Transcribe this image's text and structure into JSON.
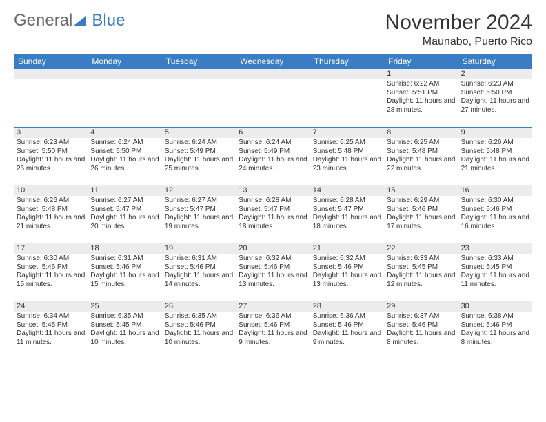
{
  "logo": {
    "general": "General",
    "blue": "Blue"
  },
  "title": "November 2024",
  "location": "Maunabo, Puerto Rico",
  "colors": {
    "header_bg": "#3b7dc4",
    "header_text": "#ffffff",
    "daynum_bg": "#ececec",
    "rule": "#3b7dc4",
    "logo_gray": "#6b6b6b",
    "logo_blue": "#3b7dc4"
  },
  "weekdays": [
    "Sunday",
    "Monday",
    "Tuesday",
    "Wednesday",
    "Thursday",
    "Friday",
    "Saturday"
  ],
  "weeks": [
    [
      null,
      null,
      null,
      null,
      null,
      {
        "n": "1",
        "sr": "6:22 AM",
        "ss": "5:51 PM",
        "dl": "11 hours and 28 minutes."
      },
      {
        "n": "2",
        "sr": "6:23 AM",
        "ss": "5:50 PM",
        "dl": "11 hours and 27 minutes."
      }
    ],
    [
      {
        "n": "3",
        "sr": "6:23 AM",
        "ss": "5:50 PM",
        "dl": "11 hours and 26 minutes."
      },
      {
        "n": "4",
        "sr": "6:24 AM",
        "ss": "5:50 PM",
        "dl": "11 hours and 26 minutes."
      },
      {
        "n": "5",
        "sr": "6:24 AM",
        "ss": "5:49 PM",
        "dl": "11 hours and 25 minutes."
      },
      {
        "n": "6",
        "sr": "6:24 AM",
        "ss": "5:49 PM",
        "dl": "11 hours and 24 minutes."
      },
      {
        "n": "7",
        "sr": "6:25 AM",
        "ss": "5:48 PM",
        "dl": "11 hours and 23 minutes."
      },
      {
        "n": "8",
        "sr": "6:25 AM",
        "ss": "5:48 PM",
        "dl": "11 hours and 22 minutes."
      },
      {
        "n": "9",
        "sr": "6:26 AM",
        "ss": "5:48 PM",
        "dl": "11 hours and 21 minutes."
      }
    ],
    [
      {
        "n": "10",
        "sr": "6:26 AM",
        "ss": "5:48 PM",
        "dl": "11 hours and 21 minutes."
      },
      {
        "n": "11",
        "sr": "6:27 AM",
        "ss": "5:47 PM",
        "dl": "11 hours and 20 minutes."
      },
      {
        "n": "12",
        "sr": "6:27 AM",
        "ss": "5:47 PM",
        "dl": "11 hours and 19 minutes."
      },
      {
        "n": "13",
        "sr": "6:28 AM",
        "ss": "5:47 PM",
        "dl": "11 hours and 18 minutes."
      },
      {
        "n": "14",
        "sr": "6:28 AM",
        "ss": "5:47 PM",
        "dl": "11 hours and 18 minutes."
      },
      {
        "n": "15",
        "sr": "6:29 AM",
        "ss": "5:46 PM",
        "dl": "11 hours and 17 minutes."
      },
      {
        "n": "16",
        "sr": "6:30 AM",
        "ss": "5:46 PM",
        "dl": "11 hours and 16 minutes."
      }
    ],
    [
      {
        "n": "17",
        "sr": "6:30 AM",
        "ss": "5:46 PM",
        "dl": "11 hours and 15 minutes."
      },
      {
        "n": "18",
        "sr": "6:31 AM",
        "ss": "5:46 PM",
        "dl": "11 hours and 15 minutes."
      },
      {
        "n": "19",
        "sr": "6:31 AM",
        "ss": "5:46 PM",
        "dl": "11 hours and 14 minutes."
      },
      {
        "n": "20",
        "sr": "6:32 AM",
        "ss": "5:46 PM",
        "dl": "11 hours and 13 minutes."
      },
      {
        "n": "21",
        "sr": "6:32 AM",
        "ss": "5:46 PM",
        "dl": "11 hours and 13 minutes."
      },
      {
        "n": "22",
        "sr": "6:33 AM",
        "ss": "5:45 PM",
        "dl": "11 hours and 12 minutes."
      },
      {
        "n": "23",
        "sr": "6:33 AM",
        "ss": "5:45 PM",
        "dl": "11 hours and 11 minutes."
      }
    ],
    [
      {
        "n": "24",
        "sr": "6:34 AM",
        "ss": "5:45 PM",
        "dl": "11 hours and 11 minutes."
      },
      {
        "n": "25",
        "sr": "6:35 AM",
        "ss": "5:45 PM",
        "dl": "11 hours and 10 minutes."
      },
      {
        "n": "26",
        "sr": "6:35 AM",
        "ss": "5:46 PM",
        "dl": "11 hours and 10 minutes."
      },
      {
        "n": "27",
        "sr": "6:36 AM",
        "ss": "5:46 PM",
        "dl": "11 hours and 9 minutes."
      },
      {
        "n": "28",
        "sr": "6:36 AM",
        "ss": "5:46 PM",
        "dl": "11 hours and 9 minutes."
      },
      {
        "n": "29",
        "sr": "6:37 AM",
        "ss": "5:46 PM",
        "dl": "11 hours and 8 minutes."
      },
      {
        "n": "30",
        "sr": "6:38 AM",
        "ss": "5:46 PM",
        "dl": "11 hours and 8 minutes."
      }
    ]
  ],
  "labels": {
    "sunrise": "Sunrise:",
    "sunset": "Sunset:",
    "daylight": "Daylight:"
  }
}
